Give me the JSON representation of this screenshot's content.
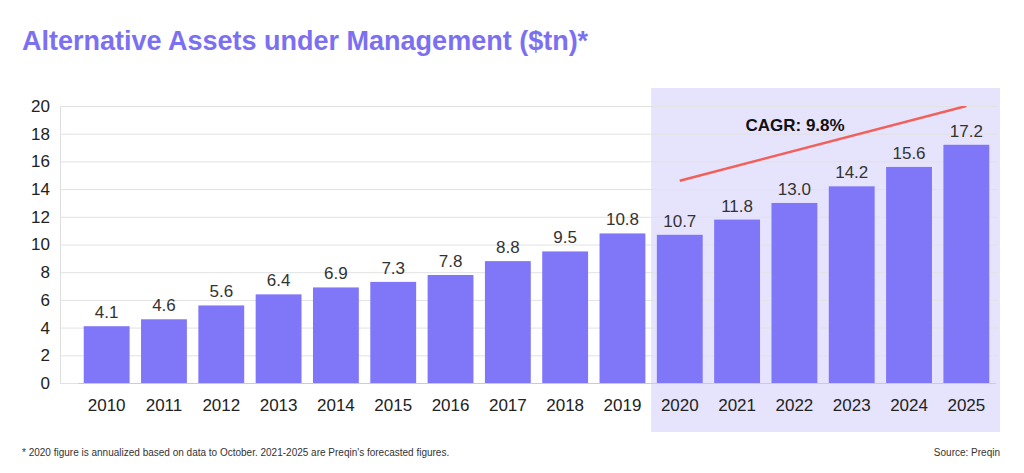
{
  "chart_data": {
    "type": "bar",
    "title": "Alternative Assets under Management ($tn)*",
    "categories": [
      "2010",
      "2011",
      "2012",
      "2013",
      "2014",
      "2015",
      "2016",
      "2017",
      "2018",
      "2019",
      "2020",
      "2021",
      "2022",
      "2023",
      "2024",
      "2025"
    ],
    "values": [
      4.1,
      4.6,
      5.6,
      6.4,
      6.9,
      7.3,
      7.8,
      8.8,
      9.5,
      10.8,
      10.7,
      11.8,
      13.0,
      14.2,
      15.6,
      17.2
    ],
    "value_labels": [
      "4.1",
      "4.6",
      "5.6",
      "6.4",
      "6.9",
      "7.3",
      "7.8",
      "8.8",
      "9.5",
      "10.8",
      "10.7",
      "11.8",
      "13.0",
      "14.2",
      "15.6",
      "17.2"
    ],
    "color": "#7f76f8",
    "ylim": [
      0,
      20
    ],
    "yticks": [
      0,
      2,
      4,
      6,
      8,
      10,
      12,
      14,
      16,
      18,
      20
    ],
    "grid": true,
    "data_labels": true,
    "shaded_range": [
      "2020",
      "2025"
    ],
    "trend_line": {
      "categories": [
        "2020",
        "2025"
      ],
      "values": [
        14.6,
        20
      ],
      "color": "#f2605a"
    },
    "annotations": [
      "CAGR: 9.8%"
    ],
    "footnote": "* 2020 figure is annualized based on data to October. 2021-2025 are Preqin's forecasted figures.",
    "source": "Source: Preqin"
  }
}
